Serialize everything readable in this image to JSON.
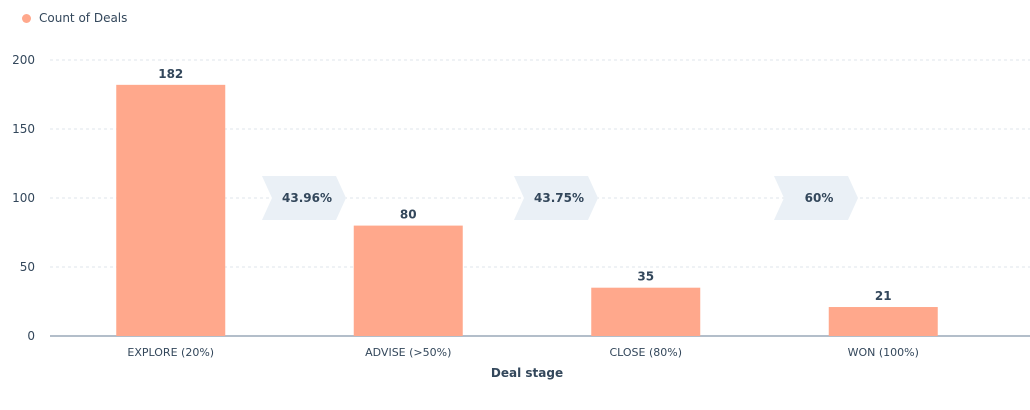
{
  "legend": {
    "label": "Count of Deals"
  },
  "colors": {
    "bar": "#ffa88c",
    "axis": "#9aa9b8",
    "grid": "#dfe5eb",
    "conversion_bg": "#eaf0f6",
    "text": "#33475b"
  },
  "chart_data": {
    "type": "bar",
    "title": "",
    "xlabel": "Deal stage",
    "ylabel": "",
    "categories": [
      "EXPLORE (20%)",
      "ADVISE (>50%)",
      "CLOSE (80%)",
      "WON (100%)"
    ],
    "series": [
      {
        "name": "Count of Deals",
        "values": [
          182,
          80,
          35,
          21
        ]
      }
    ],
    "data_labels": [
      "182",
      "80",
      "35",
      "21"
    ],
    "ylim": [
      0,
      200
    ],
    "yticks": [
      0,
      50,
      100,
      150,
      200
    ],
    "ytick_labels": [
      "0",
      "50",
      "100",
      "150",
      "200"
    ],
    "grid": true,
    "legend_position": "top-left",
    "conversion_rates": [
      "43.96%",
      "43.75%",
      "60%"
    ]
  }
}
